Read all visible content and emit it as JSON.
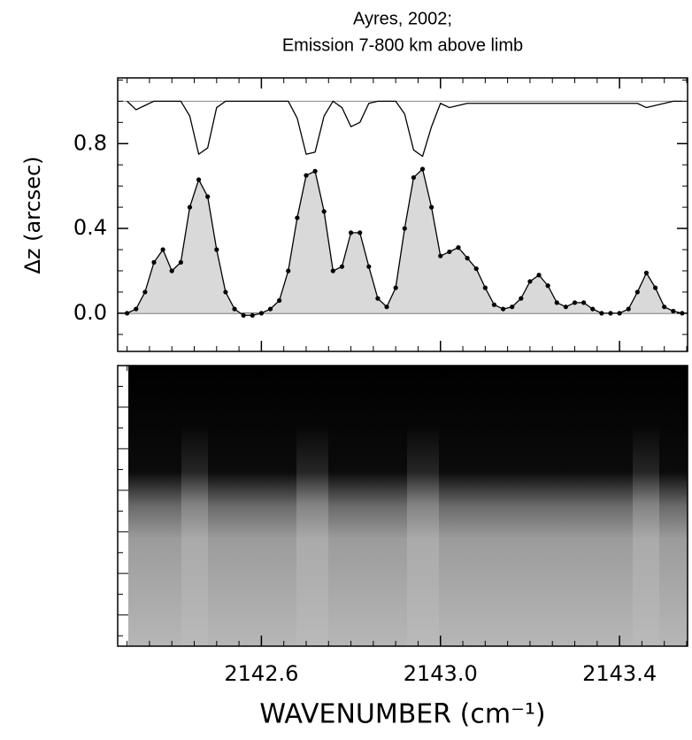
{
  "chart_data": {
    "type": "line",
    "title": [
      "Ayres, 2002;",
      "Emission 7-800 km above limb"
    ],
    "ylabel": "Δz (arcsec)",
    "xlabel": "WAVENUMBER (cm⁻¹)",
    "x": [
      2142.3,
      2142.32,
      2142.34,
      2142.36,
      2142.38,
      2142.4,
      2142.42,
      2142.44,
      2142.46,
      2142.48,
      2142.5,
      2142.52,
      2142.54,
      2142.56,
      2142.58,
      2142.6,
      2142.62,
      2142.64,
      2142.66,
      2142.68,
      2142.7,
      2142.72,
      2142.74,
      2142.76,
      2142.78,
      2142.8,
      2142.82,
      2142.84,
      2142.86,
      2142.88,
      2142.9,
      2142.92,
      2142.94,
      2142.96,
      2142.98,
      2143.0,
      2143.02,
      2143.04,
      2143.06,
      2143.08,
      2143.1,
      2143.12,
      2143.14,
      2143.16,
      2143.18,
      2143.2,
      2143.22,
      2143.24,
      2143.26,
      2143.28,
      2143.3,
      2143.32,
      2143.34,
      2143.36,
      2143.38,
      2143.4,
      2143.42,
      2143.44,
      2143.46,
      2143.48,
      2143.5,
      2143.52,
      2143.54
    ],
    "series": [
      {
        "color": "#000000",
        "fill": "#d9d9d9",
        "marker": "dot",
        "values": [
          0.0,
          0.02,
          0.1,
          0.24,
          0.3,
          0.2,
          0.24,
          0.5,
          0.63,
          0.55,
          0.3,
          0.1,
          0.02,
          -0.01,
          -0.01,
          0.0,
          0.02,
          0.06,
          0.2,
          0.45,
          0.65,
          0.67,
          0.48,
          0.2,
          0.22,
          0.38,
          0.38,
          0.22,
          0.07,
          0.03,
          0.12,
          0.4,
          0.64,
          0.68,
          0.5,
          0.27,
          0.29,
          0.31,
          0.26,
          0.21,
          0.12,
          0.04,
          0.02,
          0.03,
          0.07,
          0.15,
          0.18,
          0.13,
          0.05,
          0.03,
          0.05,
          0.05,
          0.02,
          0.0,
          0.0,
          0.0,
          0.02,
          0.1,
          0.19,
          0.12,
          0.03,
          0.01,
          0.0
        ]
      },
      {
        "color": "#000000",
        "values": [
          1.0,
          0.96,
          0.98,
          1.0,
          1.0,
          1.0,
          1.0,
          0.93,
          0.75,
          0.78,
          0.97,
          1.0,
          1.0,
          1.0,
          1.0,
          1.0,
          1.0,
          1.0,
          1.0,
          0.92,
          0.75,
          0.76,
          0.93,
          1.0,
          0.97,
          0.88,
          0.9,
          0.99,
          1.0,
          1.0,
          1.0,
          0.94,
          0.77,
          0.74,
          0.88,
          0.99,
          0.97,
          0.98,
          0.99,
          0.99,
          0.99,
          0.99,
          0.99,
          0.99,
          0.99,
          0.99,
          0.99,
          0.99,
          0.99,
          0.99,
          0.99,
          0.99,
          0.99,
          0.99,
          0.99,
          0.99,
          0.99,
          0.99,
          0.97,
          0.98,
          0.99,
          1.0,
          1.0
        ]
      }
    ],
    "hlines": [
      {
        "value": 1.0,
        "color": "#888888"
      },
      {
        "value": 0,
        "color": "#000000"
      }
    ],
    "xlim": [
      2142.279,
      2143.552
    ],
    "ylim": [
      -0.18,
      1.11
    ],
    "xticks": [
      2142.6,
      {
        "value": 2143.0,
        "label": "2143.0"
      },
      2143.4
    ],
    "yticks": [
      {
        "value": 0,
        "label": "0.0"
      },
      0.4,
      0.8
    ],
    "xminor": 0.05,
    "yminor": 0.1
  }
}
